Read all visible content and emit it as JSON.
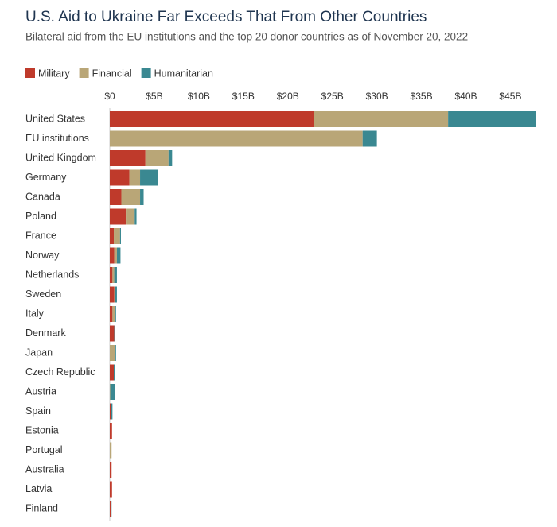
{
  "chart_data": {
    "type": "stacked_barh",
    "title": "U.S. Aid to Ukraine Far Exceeds That From Other Countries",
    "subtitle": "Bilateral aid from the EU institutions and the top 20 donor countries as of November 20, 2022",
    "categories": [
      "United States",
      "EU institutions",
      "United Kingdom",
      "Germany",
      "Canada",
      "Poland",
      "France",
      "Norway",
      "Netherlands",
      "Sweden",
      "Italy",
      "Denmark",
      "Japan",
      "Czech Republic",
      "Austria",
      "Spain",
      "Estonia",
      "Portugal",
      "Australia",
      "Latvia",
      "Finland"
    ],
    "series": [
      {
        "name": "Military",
        "color": "#bf3a2b",
        "values": [
          22.9,
          0,
          4.0,
          2.2,
          1.3,
          1.8,
          0.45,
          0.5,
          0.3,
          0.5,
          0.3,
          0.5,
          0,
          0.45,
          0,
          0.1,
          0.25,
          0,
          0.2,
          0.25,
          0.15
        ]
      },
      {
        "name": "Financial",
        "color": "#b9a677",
        "values": [
          15.1,
          28.4,
          2.6,
          1.2,
          2.1,
          1.0,
          0.7,
          0.3,
          0.2,
          0.1,
          0.3,
          0,
          0.6,
          0,
          0.05,
          0,
          0,
          0.2,
          0,
          0,
          0
        ]
      },
      {
        "name": "Humanitarian",
        "color": "#3a8891",
        "values": [
          9.9,
          1.6,
          0.4,
          2.0,
          0.4,
          0.2,
          0.1,
          0.4,
          0.3,
          0.2,
          0.1,
          0.05,
          0.1,
          0.1,
          0.5,
          0.2,
          0,
          0,
          0,
          0,
          0.05
        ]
      }
    ],
    "xlim": [
      0,
      48
    ],
    "xticks": [
      {
        "value": 0,
        "label": "$0"
      },
      {
        "value": 5,
        "label": "$5B"
      },
      {
        "value": 10,
        "label": "$10B"
      },
      {
        "value": 15,
        "label": "$15B"
      },
      {
        "value": 20,
        "label": "$20B"
      },
      {
        "value": 25,
        "label": "$25B"
      },
      {
        "value": 30,
        "label": "$30B"
      },
      {
        "value": 35,
        "label": "$35B"
      },
      {
        "value": 40,
        "label": "$40B"
      },
      {
        "value": 45,
        "label": "$45B"
      }
    ],
    "legend": "top-left"
  }
}
